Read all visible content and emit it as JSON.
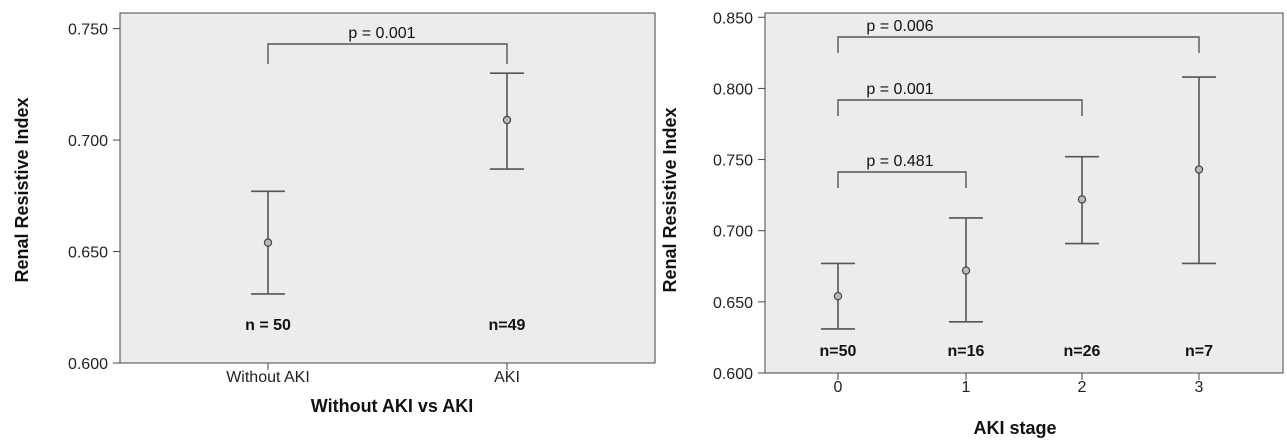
{
  "chart_data": [
    {
      "type": "errorbar",
      "xlabel": "Without AKI vs AKI",
      "ylabel": "Renal Resistive Index",
      "ylim": [
        0.6,
        0.757
      ],
      "yticks": [
        "0.600",
        "0.650",
        "0.700",
        "0.750"
      ],
      "yticks_values": [
        0.6,
        0.65,
        0.7,
        0.75
      ],
      "grid": false,
      "categories": [
        "Without AKI",
        "AKI"
      ],
      "mean": [
        0.654,
        0.709
      ],
      "lower": [
        0.631,
        0.687
      ],
      "upper": [
        0.677,
        0.73
      ],
      "n_labels": [
        "n = 50",
        "n=49"
      ],
      "comparisons": [
        {
          "from": 0,
          "to": 1,
          "label": "p = 0.001"
        }
      ]
    },
    {
      "type": "errorbar",
      "xlabel": "AKI stage",
      "ylabel": "Renal Resistive Index",
      "ylim": [
        0.6,
        0.853
      ],
      "yticks": [
        "0.600",
        "0.650",
        "0.700",
        "0.750",
        "0.800",
        "0.850"
      ],
      "yticks_values": [
        0.6,
        0.65,
        0.7,
        0.75,
        0.8,
        0.85
      ],
      "grid": false,
      "categories": [
        "0",
        "1",
        "2",
        "3"
      ],
      "mean": [
        0.654,
        0.672,
        0.722,
        0.743
      ],
      "lower": [
        0.631,
        0.636,
        0.691,
        0.677
      ],
      "upper": [
        0.677,
        0.709,
        0.752,
        0.808
      ],
      "n_labels": [
        "n=50",
        "n=16",
        "n=26",
        "n=7"
      ],
      "comparisons": [
        {
          "from": 0,
          "to": 1,
          "label": "p = 0.481"
        },
        {
          "from": 0,
          "to": 2,
          "label": "p = 0.001"
        },
        {
          "from": 0,
          "to": 3,
          "label": "p = 0.006"
        }
      ]
    }
  ]
}
